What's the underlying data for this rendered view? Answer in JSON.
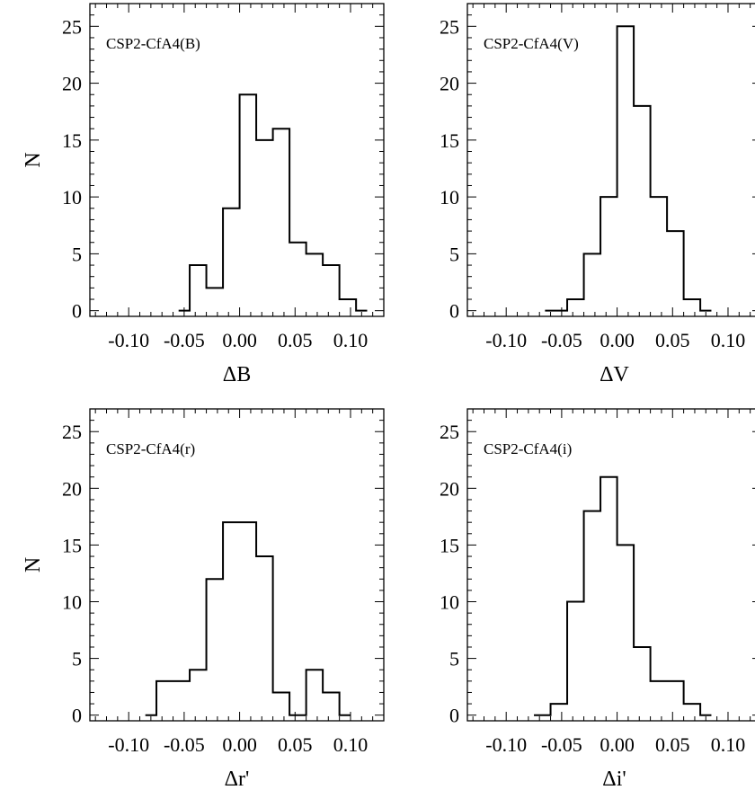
{
  "chart_data": [
    {
      "type": "bar",
      "title": "CSP2-CfA4(B)",
      "xlabel": "ΔB",
      "ylabel": "N",
      "xlim": [
        -0.135,
        0.13
      ],
      "ylim": [
        -0.5,
        27
      ],
      "xticks": [
        -0.1,
        -0.05,
        0.0,
        0.05,
        0.1
      ],
      "xtick_labels": [
        "-0.10",
        "-0.05",
        "0.00",
        "0.05",
        "0.10"
      ],
      "yticks": [
        0,
        5,
        10,
        15,
        20,
        25
      ],
      "ytick_labels": [
        "0",
        "5",
        "10",
        "15",
        "20",
        "25"
      ],
      "bin_edges": [
        -0.055,
        -0.045,
        -0.03,
        -0.015,
        0.0,
        0.015,
        0.03,
        0.045,
        0.06,
        0.075,
        0.09,
        0.105,
        0.115
      ],
      "values": [
        0,
        4,
        2,
        9,
        19,
        15,
        16,
        6,
        5,
        4,
        1,
        0
      ]
    },
    {
      "type": "bar",
      "title": "CSP2-CfA4(V)",
      "xlabel": "ΔV",
      "ylabel": "",
      "xlim": [
        -0.135,
        0.13
      ],
      "ylim": [
        -0.5,
        27
      ],
      "xticks": [
        -0.1,
        -0.05,
        0.0,
        0.05,
        0.1
      ],
      "xtick_labels": [
        "-0.10",
        "-0.05",
        "0.00",
        "0.05",
        "0.10"
      ],
      "yticks": [
        0,
        5,
        10,
        15,
        20,
        25
      ],
      "ytick_labels": [
        "0",
        "5",
        "10",
        "15",
        "20",
        "25"
      ],
      "bin_edges": [
        -0.065,
        -0.045,
        -0.03,
        -0.015,
        0.0,
        0.015,
        0.03,
        0.045,
        0.06,
        0.075,
        0.085
      ],
      "values": [
        0,
        1,
        5,
        10,
        25,
        18,
        10,
        7,
        1,
        0
      ]
    },
    {
      "type": "bar",
      "title": "CSP2-CfA4(r)",
      "xlabel": "Δr'",
      "ylabel": "N",
      "xlim": [
        -0.135,
        0.13
      ],
      "ylim": [
        -0.5,
        27
      ],
      "xticks": [
        -0.1,
        -0.05,
        0.0,
        0.05,
        0.1
      ],
      "xtick_labels": [
        "-0.10",
        "-0.05",
        "0.00",
        "0.05",
        "0.10"
      ],
      "yticks": [
        0,
        5,
        10,
        15,
        20,
        25
      ],
      "ytick_labels": [
        "0",
        "5",
        "10",
        "15",
        "20",
        "25"
      ],
      "bin_edges": [
        -0.085,
        -0.075,
        -0.06,
        -0.045,
        -0.03,
        -0.015,
        0.0,
        0.015,
        0.03,
        0.045,
        0.06,
        0.075,
        0.09,
        0.1
      ],
      "values": [
        0,
        3,
        3,
        4,
        12,
        17,
        17,
        14,
        2,
        0,
        4,
        2,
        0
      ]
    },
    {
      "type": "bar",
      "title": "CSP2-CfA4(i)",
      "xlabel": "Δi'",
      "ylabel": "",
      "xlim": [
        -0.135,
        0.13
      ],
      "ylim": [
        -0.5,
        27
      ],
      "xticks": [
        -0.1,
        -0.05,
        0.0,
        0.05,
        0.1
      ],
      "xtick_labels": [
        "-0.10",
        "-0.05",
        "0.00",
        "0.05",
        "0.10"
      ],
      "yticks": [
        0,
        5,
        10,
        15,
        20,
        25
      ],
      "ytick_labels": [
        "0",
        "5",
        "10",
        "15",
        "20",
        "25"
      ],
      "bin_edges": [
        -0.075,
        -0.06,
        -0.045,
        -0.03,
        -0.015,
        0.0,
        0.015,
        0.03,
        0.045,
        0.06,
        0.075,
        0.085
      ],
      "values": [
        0,
        1,
        10,
        18,
        21,
        15,
        6,
        3,
        3,
        1,
        0
      ]
    }
  ]
}
